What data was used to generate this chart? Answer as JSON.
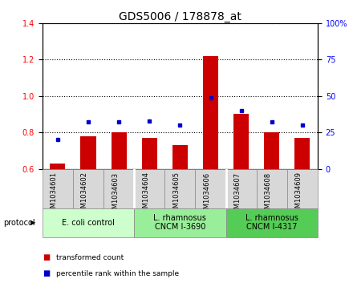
{
  "title": "GDS5006 / 178878_at",
  "samples": [
    "GSM1034601",
    "GSM1034602",
    "GSM1034603",
    "GSM1034604",
    "GSM1034605",
    "GSM1034606",
    "GSM1034607",
    "GSM1034608",
    "GSM1034609"
  ],
  "transformed_count": [
    0.63,
    0.78,
    0.8,
    0.77,
    0.73,
    1.22,
    0.9,
    0.8,
    0.77
  ],
  "percentile_rank": [
    20,
    32,
    32,
    33,
    30,
    49,
    40,
    32,
    30
  ],
  "ylim_left": [
    0.6,
    1.4
  ],
  "ylim_right": [
    0,
    100
  ],
  "yticks_left": [
    0.6,
    0.8,
    1.0,
    1.2,
    1.4
  ],
  "yticks_right": [
    0,
    25,
    50,
    75,
    100
  ],
  "ytick_labels_right": [
    "0",
    "25",
    "50",
    "75",
    "100%"
  ],
  "bar_color": "#cc0000",
  "dot_color": "#0000cc",
  "plot_bg_color": "#ffffff",
  "sample_box_color": "#d8d8d8",
  "protocol_groups": [
    {
      "label": "E. coli control",
      "start": 0,
      "end": 2,
      "color": "#ccffcc"
    },
    {
      "label": "L. rhamnosus\nCNCM I-3690",
      "start": 3,
      "end": 5,
      "color": "#99ee99"
    },
    {
      "label": "L. rhamnosus\nCNCM I-4317",
      "start": 6,
      "end": 8,
      "color": "#55cc55"
    }
  ],
  "legend_items": [
    {
      "label": "transformed count",
      "color": "#cc0000"
    },
    {
      "label": "percentile rank within the sample",
      "color": "#0000cc"
    }
  ],
  "title_fontsize": 10,
  "tick_fontsize": 7,
  "sample_fontsize": 6,
  "proto_fontsize": 7,
  "bar_width": 0.5
}
